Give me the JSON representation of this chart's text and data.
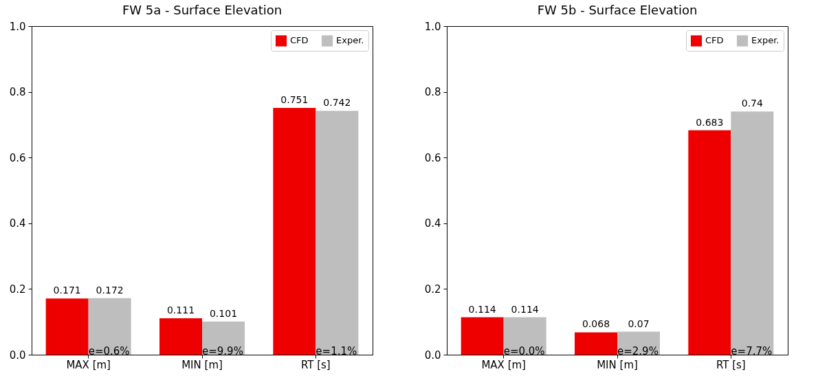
{
  "chart_data": [
    {
      "type": "bar",
      "title": "FW 5a - Surface Elevation",
      "categories": [
        "MAX [m]",
        "MIN [m]",
        "RT [s]"
      ],
      "series": [
        {
          "name": "CFD",
          "color": "#ee0000",
          "values": [
            0.171,
            0.111,
            0.751
          ]
        },
        {
          "name": "Exper.",
          "color": "#bebebe",
          "values": [
            0.172,
            0.101,
            0.742
          ]
        }
      ],
      "data_labels": true,
      "legend": "top right",
      "ylim": [
        0,
        1
      ],
      "yticks": [
        {
          "value": 0,
          "label": "0.0"
        },
        {
          "value": 0.2,
          "label": "0.2"
        },
        {
          "value": 0.4,
          "label": "0.4"
        },
        {
          "value": 0.6,
          "label": "0.6"
        },
        {
          "value": 0.8,
          "label": "0.8"
        },
        {
          "value": 1,
          "label": "1.0"
        }
      ],
      "annotations": [
        {
          "text": "e=0.6%",
          "x": "MAX [m]",
          "y": 0
        },
        {
          "text": "e=9.9%",
          "x": "MIN [m]",
          "y": 0
        },
        {
          "text": "e=1.1%",
          "x": "RT [s]",
          "y": 0
        }
      ]
    },
    {
      "type": "bar",
      "title": "FW 5b - Surface Elevation",
      "categories": [
        "MAX [m]",
        "MIN [m]",
        "RT [s]"
      ],
      "series": [
        {
          "name": "CFD",
          "color": "#ee0000",
          "values": [
            0.114,
            0.068,
            0.683
          ]
        },
        {
          "name": "Exper.",
          "color": "#bebebe",
          "values": [
            0.114,
            0.07,
            0.74
          ]
        }
      ],
      "data_labels": true,
      "legend": "top right",
      "ylim": [
        0,
        1
      ],
      "yticks": [
        {
          "value": 0,
          "label": "0.0"
        },
        {
          "value": 0.2,
          "label": "0.2"
        },
        {
          "value": 0.4,
          "label": "0.4"
        },
        {
          "value": 0.6,
          "label": "0.6"
        },
        {
          "value": 0.8,
          "label": "0.8"
        },
        {
          "value": 1,
          "label": "1.0"
        }
      ],
      "annotations": [
        {
          "text": "e=0.0%",
          "x": "MAX [m]",
          "y": 0
        },
        {
          "text": "e=2.9%",
          "x": "MIN [m]",
          "y": 0
        },
        {
          "text": "e=7.7%",
          "x": "RT [s]",
          "y": 0
        }
      ]
    }
  ]
}
